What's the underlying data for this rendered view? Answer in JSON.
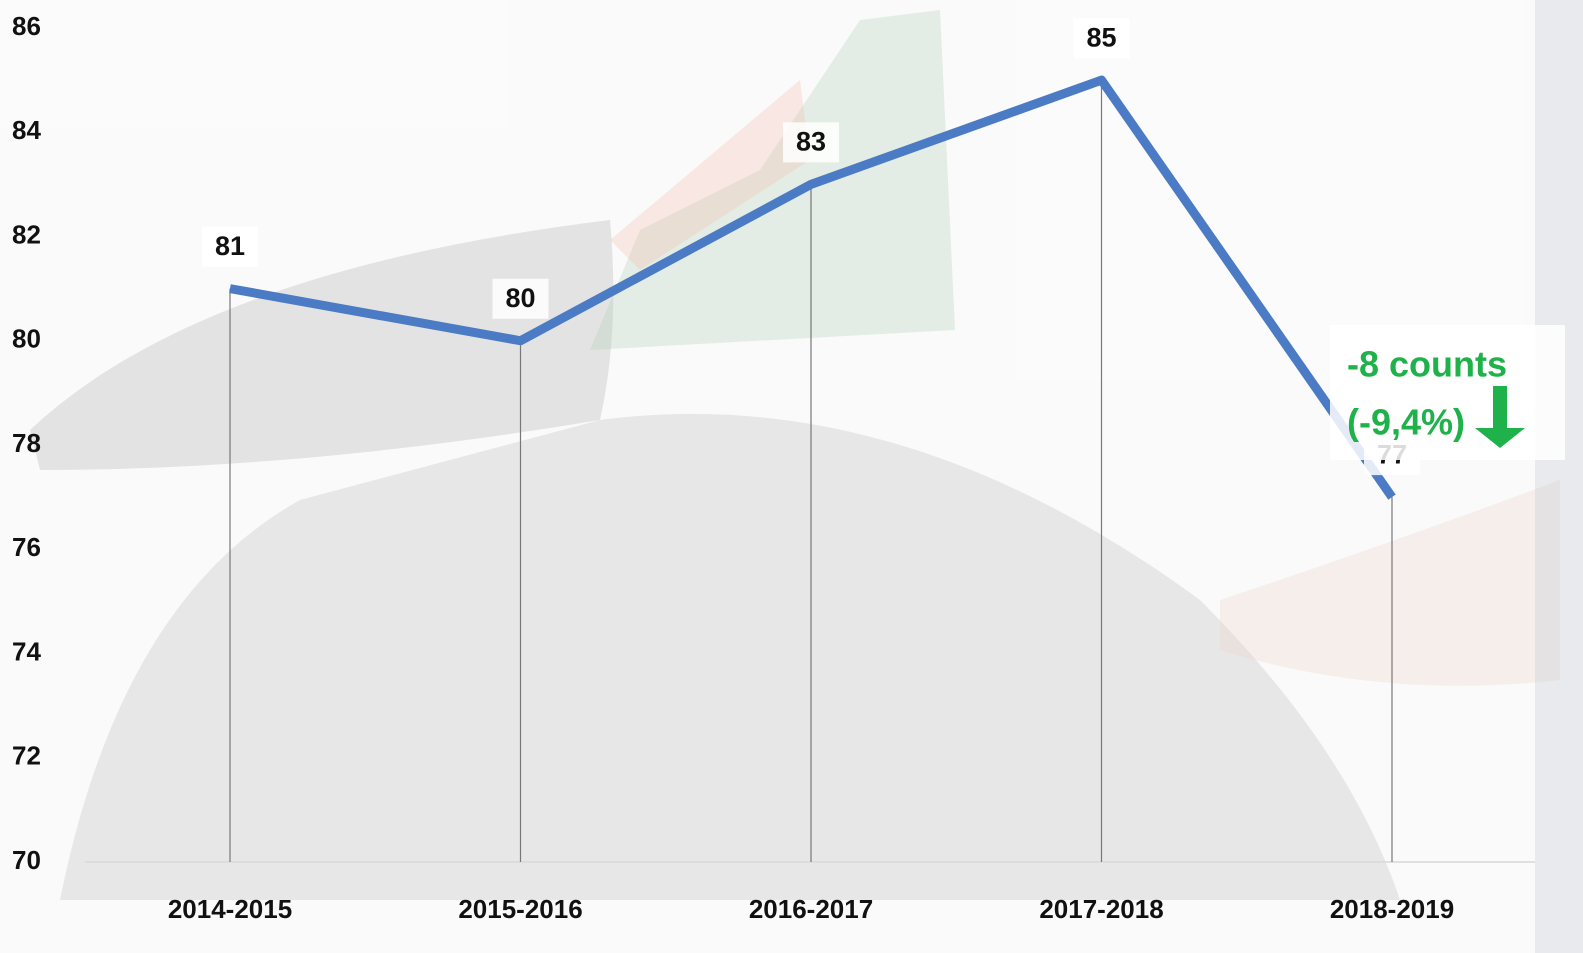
{
  "chart_data": {
    "type": "line",
    "categories": [
      "2014-2015",
      "2015-2016",
      "2016-2017",
      "2017-2018",
      "2018-2019"
    ],
    "values": [
      81,
      80,
      83,
      85,
      77
    ],
    "color": "#4a7bc4",
    "ylim": [
      70,
      86
    ],
    "yticks": [
      70,
      72,
      74,
      76,
      78,
      80,
      82,
      84,
      86
    ],
    "drop_lines": true,
    "annotations": [
      "-8 counts",
      "(-9,4%)"
    ],
    "annotation_color": "#1fb14a"
  }
}
